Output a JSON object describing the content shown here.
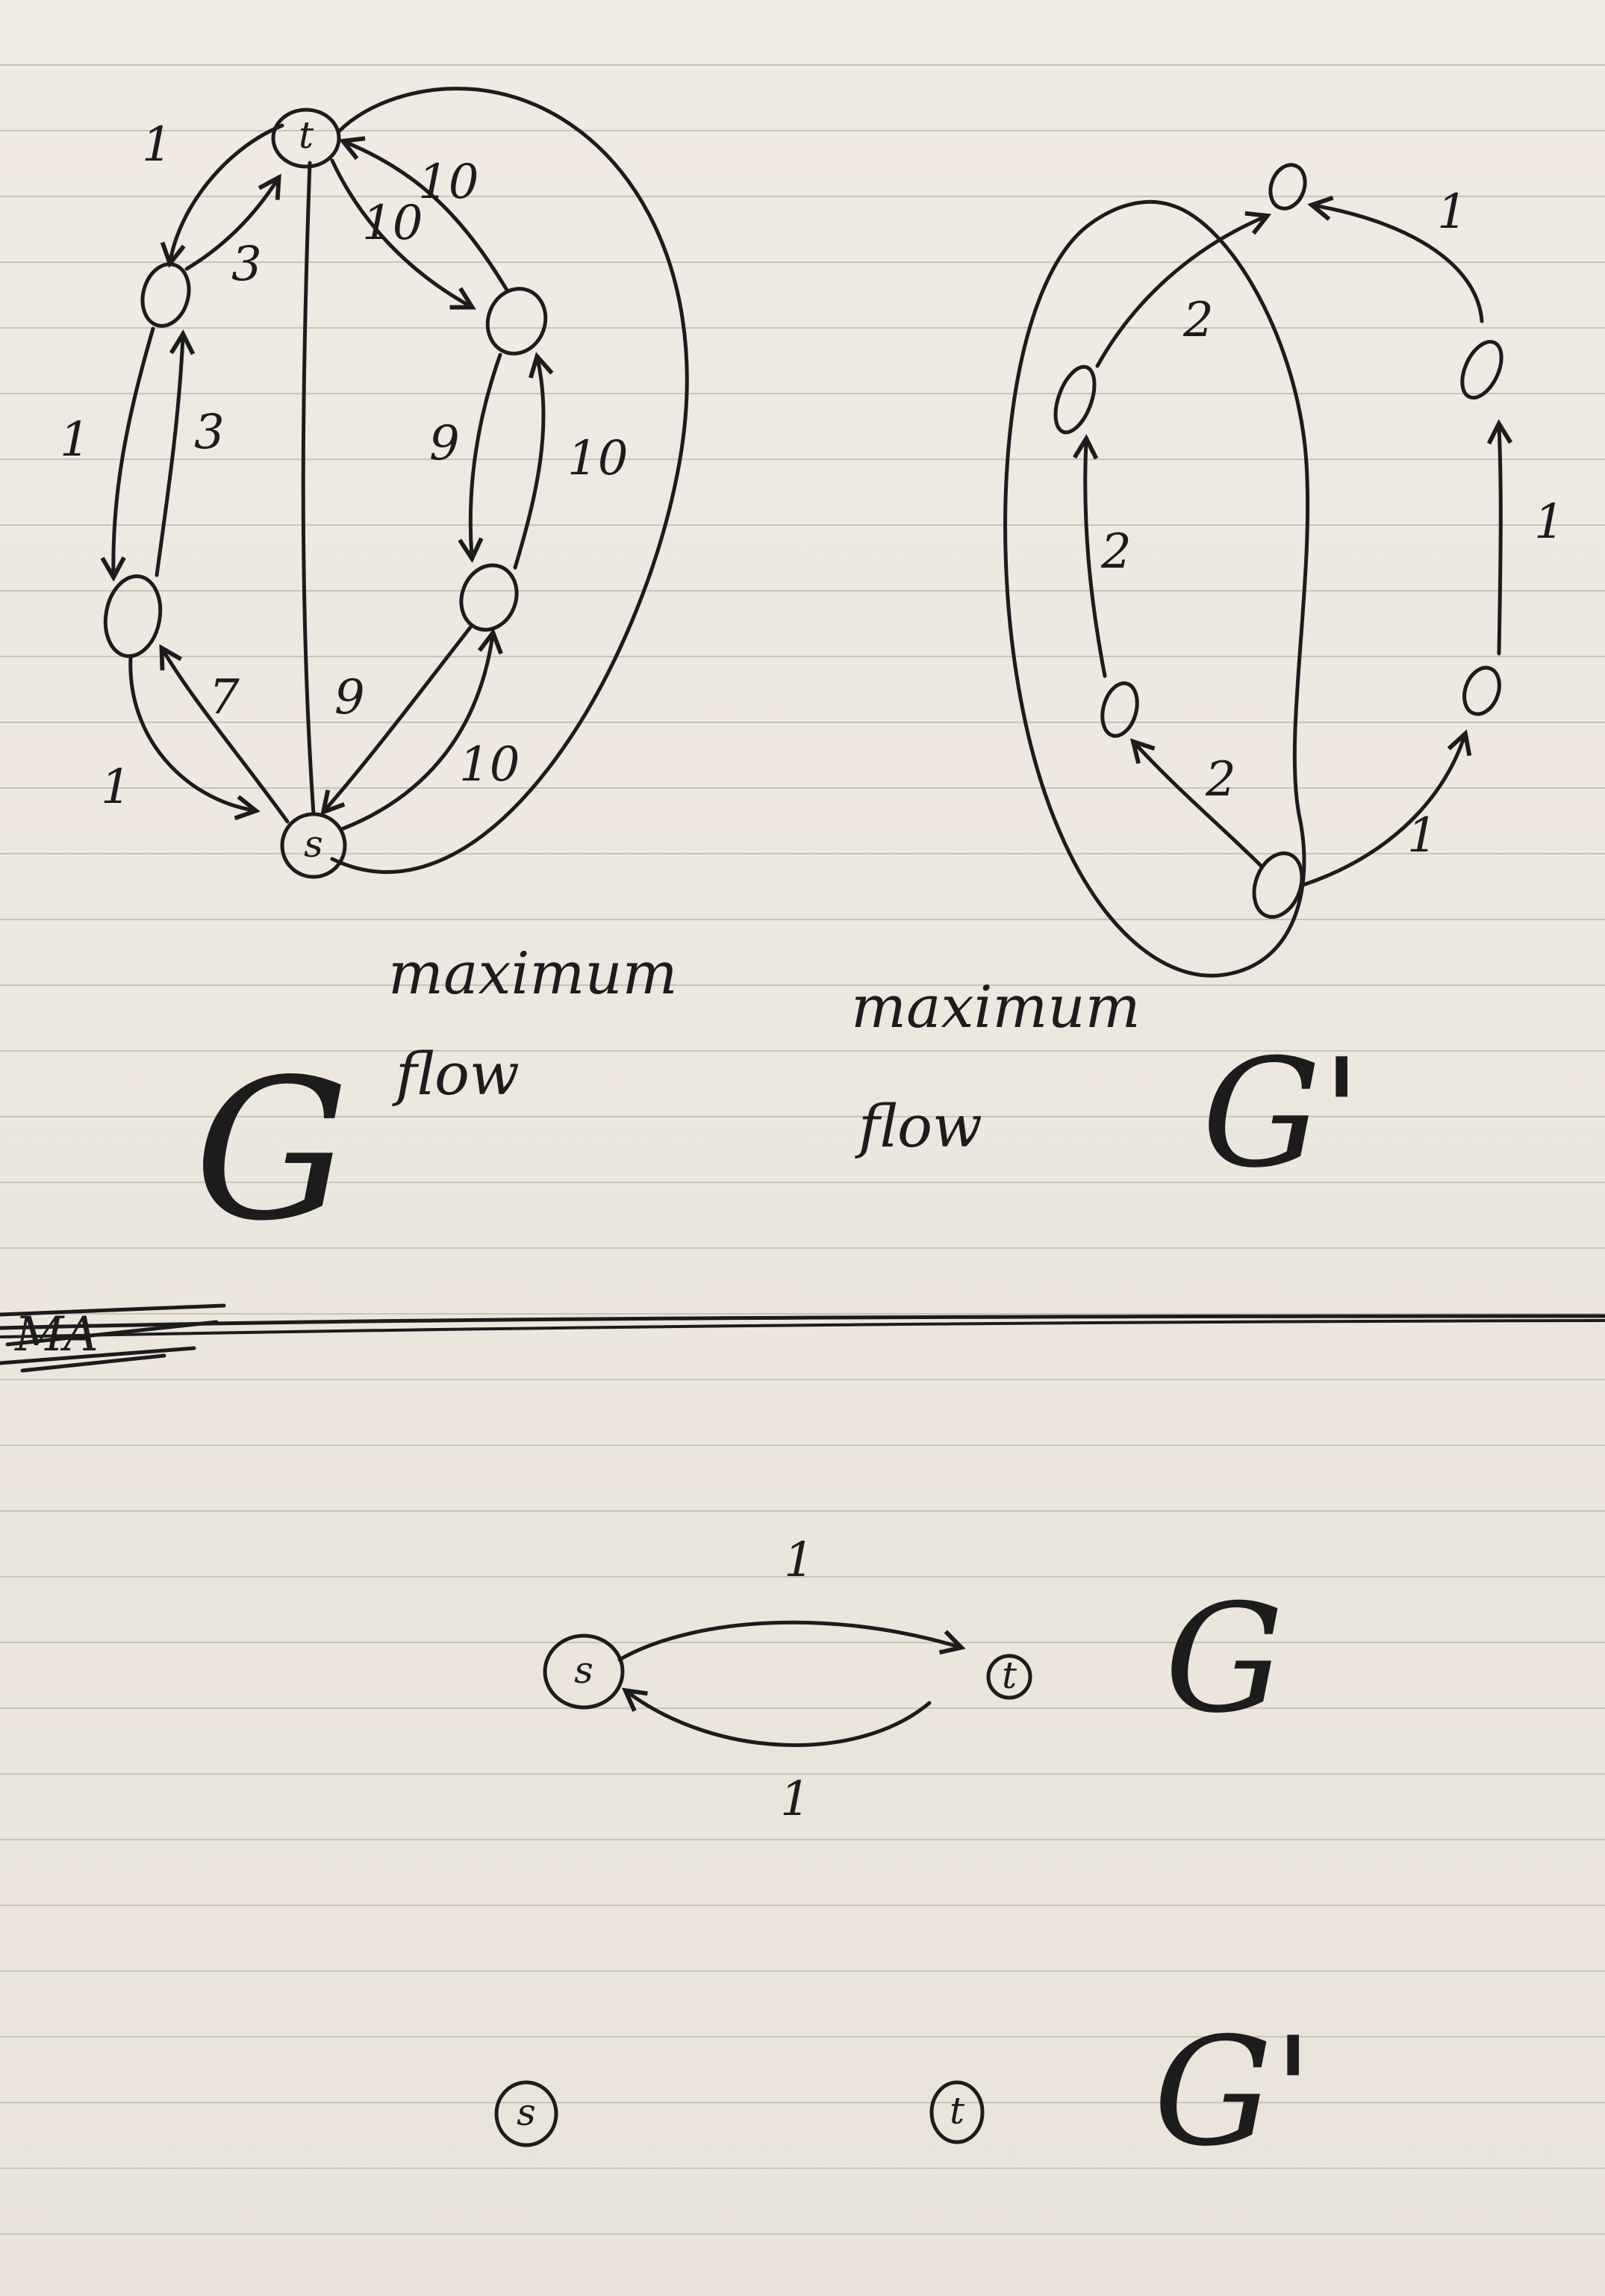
{
  "top_left": {
    "graph_name": "G",
    "caption_line1": "maximum",
    "caption_line2": "flow",
    "nodes": {
      "source": "s",
      "sink": "t"
    },
    "edge_labels": {
      "t_to_upper_left_1": "1",
      "upper_left_to_t": "3",
      "right_loop_to_t": "10",
      "t_to_upper_right": "10",
      "upper_left_down": "1",
      "lower_left_up": "3",
      "upper_right_down": "9",
      "lower_right_up": "10",
      "lower_left_to_s": "1",
      "s_to_lower_left": "7",
      "lower_right_to_s": "9",
      "s_to_lower_right": "10"
    }
  },
  "top_right": {
    "graph_name": "G'",
    "caption_line1": "maximum",
    "caption_line2": "flow",
    "edge_labels": {
      "bottom_to_left_mid": "2",
      "left_mid_up": "2",
      "left_top_to_top": "2",
      "right_top_to_top": "1",
      "right_mid_up": "1",
      "bottom_to_right_low": "1"
    }
  },
  "bottom_top": {
    "graph_name": "G",
    "nodes": {
      "source": "s",
      "sink": "t"
    },
    "edge_labels": {
      "top": "1",
      "bottom": "1"
    }
  },
  "bottom_bottom": {
    "graph_name": "G'",
    "nodes": {
      "source": "s",
      "sink": "t"
    }
  },
  "divider_scribble": "MA"
}
